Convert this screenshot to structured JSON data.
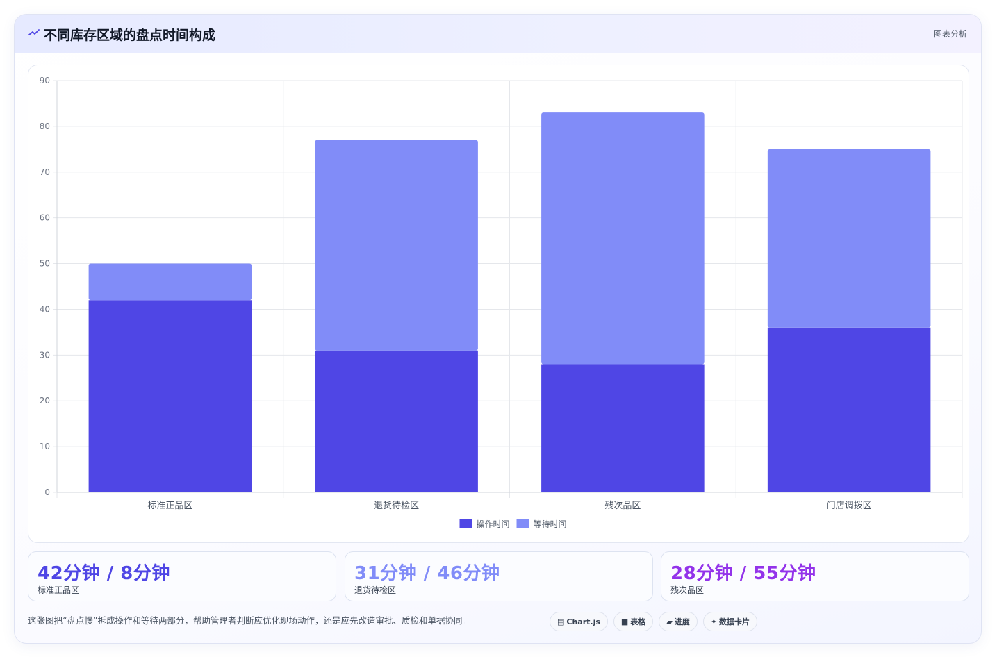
{
  "header": {
    "title": "不同库存区域的盘点时间构成",
    "tag": "图表分析"
  },
  "chart_data": {
    "type": "bar",
    "stacked": true,
    "categories": [
      "标准正品区",
      "退货待检区",
      "残次品区",
      "门店调拨区"
    ],
    "series": [
      {
        "name": "操作时间",
        "values": [
          42,
          31,
          28,
          36
        ],
        "color": "#4f46e5"
      },
      {
        "name": "等待时间",
        "values": [
          8,
          46,
          55,
          39
        ],
        "color": "#818cf8"
      }
    ],
    "ylim": [
      0,
      90
    ],
    "yticks": [
      0,
      10,
      20,
      30,
      40,
      50,
      60,
      70,
      80,
      90
    ],
    "legend_position": "bottom",
    "grid": true
  },
  "stats": [
    {
      "value": "42分钟 / 8分钟",
      "label": "标准正品区",
      "color": "#4f46e5"
    },
    {
      "value": "31分钟 / 46分钟",
      "label": "退货待检区",
      "color": "#818cf8"
    },
    {
      "value": "28分钟 / 55分钟",
      "label": "残次品区",
      "color": "#9333ea"
    }
  ],
  "description": "这张图把“盘点慢”拆成操作和等待两部分，帮助管理者判断应优化现场动作，还是应先改造审批、质检和单据协同。",
  "chips": [
    {
      "icon": "▤",
      "label": "Chart.js"
    },
    {
      "icon": "■",
      "label": "表格"
    },
    {
      "icon": "▰",
      "label": "进度"
    },
    {
      "icon": "✦",
      "label": "数据卡片"
    }
  ]
}
